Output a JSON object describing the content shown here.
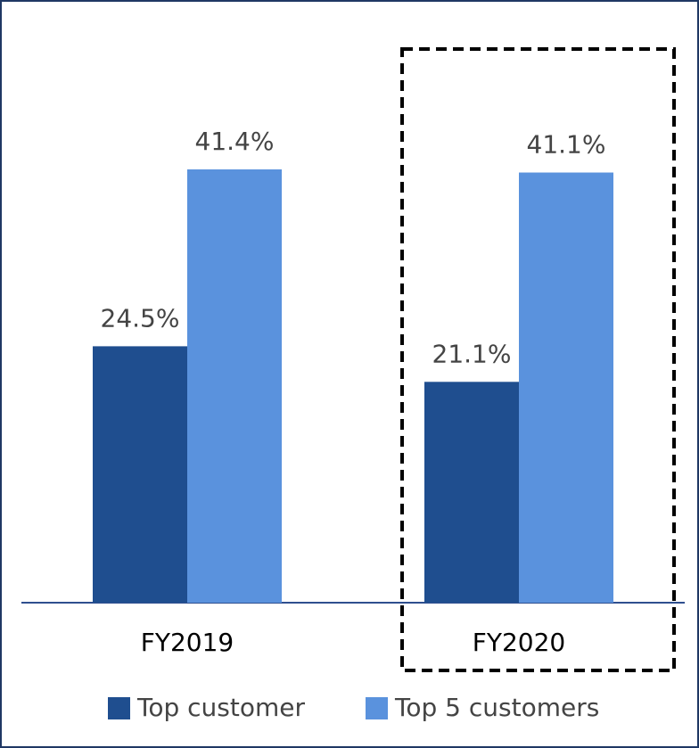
{
  "chart_data": {
    "type": "bar",
    "categories": [
      "FY2019",
      "FY2020"
    ],
    "series": [
      {
        "name": "Top customer",
        "color": "#1f4e8f",
        "values": [
          24.5,
          21.1
        ],
        "value_labels": [
          "24.5%",
          "21.1%"
        ]
      },
      {
        "name": "Top 5 customers",
        "color": "#5a92dd",
        "values": [
          41.4,
          41.1
        ],
        "value_labels": [
          "41.4%",
          "41.1%"
        ]
      }
    ]
  }
}
